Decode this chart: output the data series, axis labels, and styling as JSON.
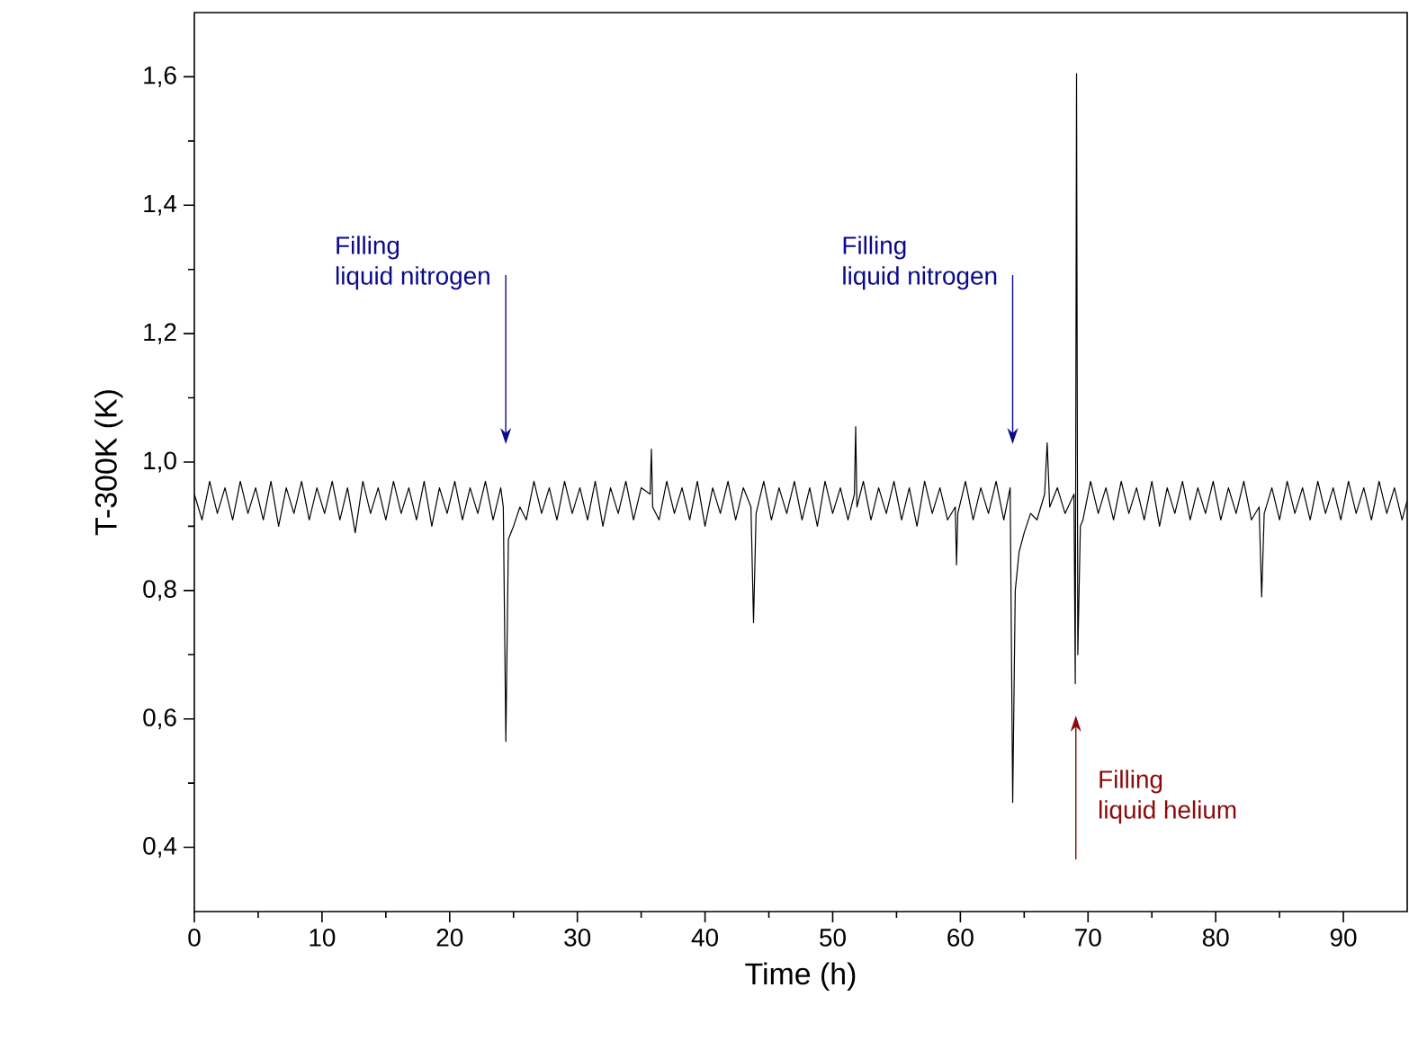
{
  "chart_data": {
    "type": "line",
    "xlabel": "Time (h)",
    "ylabel": "T-300K (K)",
    "xlim": [
      0,
      95
    ],
    "ylim": [
      0.3,
      1.7
    ],
    "xticks": [
      0,
      10,
      20,
      30,
      40,
      50,
      60,
      70,
      80,
      90
    ],
    "yticks": [
      {
        "value": 0.4,
        "label": "0,4"
      },
      {
        "value": 0.6,
        "label": "0,6"
      },
      {
        "value": 0.8,
        "label": "0,8"
      },
      {
        "value": 1.0,
        "label": "1,0"
      },
      {
        "value": 1.2,
        "label": "1,2"
      },
      {
        "value": 1.4,
        "label": "1,4"
      },
      {
        "value": 1.6,
        "label": "1,6"
      }
    ],
    "marker": "none",
    "line_style": "solid",
    "annotations": [
      "Filling",
      "liquid nitrogen",
      "Filling",
      "liquid nitrogen",
      "Filling",
      "liquid helium"
    ],
    "series": [
      {
        "color": "#000000",
        "x": [
          0,
          0.6,
          1.2,
          1.8,
          2.4,
          3,
          3.6,
          4.2,
          4.8,
          5.4,
          6,
          6.6,
          7.2,
          7.8,
          8.4,
          9,
          9.6,
          10.2,
          10.8,
          11.4,
          12,
          12.6,
          13.2,
          13.8,
          14.4,
          15,
          15.6,
          16.2,
          16.8,
          17.4,
          18,
          18.6,
          19.2,
          19.8,
          20.4,
          21,
          21.6,
          22.2,
          22.8,
          23.4,
          24.0,
          24.2,
          24.4,
          24.6,
          25,
          25.5,
          26,
          26.6,
          27.2,
          27.8,
          28.4,
          29,
          29.6,
          30.2,
          30.8,
          31.4,
          32,
          32.6,
          33.2,
          33.8,
          34.4,
          35,
          35.7,
          35.8,
          35.9,
          36.4,
          37,
          37.6,
          38.2,
          38.8,
          39.4,
          40,
          40.6,
          41.2,
          41.8,
          42.4,
          43,
          43.6,
          43.8,
          44.0,
          44.6,
          45.2,
          45.8,
          46.4,
          47,
          47.6,
          48.2,
          48.8,
          49.4,
          50,
          50.6,
          51.2,
          51.7,
          51.8,
          51.9,
          52.4,
          53,
          53.6,
          54.2,
          54.8,
          55.4,
          56,
          56.6,
          57.2,
          57.8,
          58.4,
          59,
          59.6,
          59.7,
          59.8,
          60.4,
          61,
          61.6,
          62.2,
          62.8,
          63.4,
          63.9,
          64.1,
          64.3,
          64.6,
          65,
          65.5,
          66,
          66.6,
          66.8,
          67,
          67.6,
          68.2,
          68.9,
          69.0,
          69.1,
          69.2,
          69.4,
          69.6,
          70.2,
          70.8,
          71.4,
          72,
          72.6,
          73.2,
          73.8,
          74.4,
          75,
          75.6,
          76.2,
          76.8,
          77.4,
          78,
          78.6,
          79.2,
          79.8,
          80.4,
          81,
          81.6,
          82.2,
          82.8,
          83.4,
          83.6,
          83.8,
          84.4,
          85,
          85.6,
          86.2,
          86.8,
          87.4,
          88,
          88.6,
          89.2,
          89.8,
          90.4,
          91,
          91.6,
          92.2,
          92.8,
          93.4,
          94,
          94.6,
          95
        ],
        "values": [
          0.95,
          0.91,
          0.97,
          0.92,
          0.96,
          0.91,
          0.97,
          0.92,
          0.96,
          0.91,
          0.97,
          0.9,
          0.96,
          0.92,
          0.97,
          0.91,
          0.96,
          0.92,
          0.97,
          0.91,
          0.96,
          0.89,
          0.97,
          0.92,
          0.96,
          0.91,
          0.97,
          0.92,
          0.96,
          0.91,
          0.97,
          0.9,
          0.96,
          0.92,
          0.97,
          0.91,
          0.96,
          0.92,
          0.97,
          0.91,
          0.96,
          0.93,
          0.565,
          0.88,
          0.9,
          0.93,
          0.91,
          0.97,
          0.92,
          0.96,
          0.91,
          0.97,
          0.92,
          0.96,
          0.91,
          0.97,
          0.9,
          0.96,
          0.92,
          0.97,
          0.91,
          0.96,
          0.95,
          1.02,
          0.93,
          0.91,
          0.97,
          0.92,
          0.96,
          0.91,
          0.97,
          0.9,
          0.96,
          0.92,
          0.97,
          0.91,
          0.96,
          0.93,
          0.75,
          0.92,
          0.97,
          0.91,
          0.96,
          0.92,
          0.97,
          0.91,
          0.96,
          0.9,
          0.97,
          0.92,
          0.96,
          0.91,
          0.95,
          1.055,
          0.93,
          0.97,
          0.91,
          0.96,
          0.92,
          0.97,
          0.91,
          0.96,
          0.9,
          0.97,
          0.92,
          0.96,
          0.91,
          0.93,
          0.84,
          0.92,
          0.97,
          0.91,
          0.96,
          0.92,
          0.97,
          0.91,
          0.96,
          0.47,
          0.8,
          0.86,
          0.89,
          0.92,
          0.91,
          0.95,
          1.03,
          0.93,
          0.96,
          0.92,
          0.95,
          0.655,
          1.605,
          0.7,
          0.9,
          0.91,
          0.97,
          0.92,
          0.96,
          0.91,
          0.97,
          0.92,
          0.96,
          0.91,
          0.97,
          0.9,
          0.96,
          0.92,
          0.97,
          0.91,
          0.96,
          0.92,
          0.97,
          0.91,
          0.96,
          0.92,
          0.97,
          0.91,
          0.93,
          0.79,
          0.92,
          0.96,
          0.91,
          0.97,
          0.92,
          0.96,
          0.91,
          0.97,
          0.92,
          0.96,
          0.91,
          0.97,
          0.92,
          0.96,
          0.91,
          0.97,
          0.92,
          0.96,
          0.91,
          0.94
        ]
      }
    ]
  }
}
